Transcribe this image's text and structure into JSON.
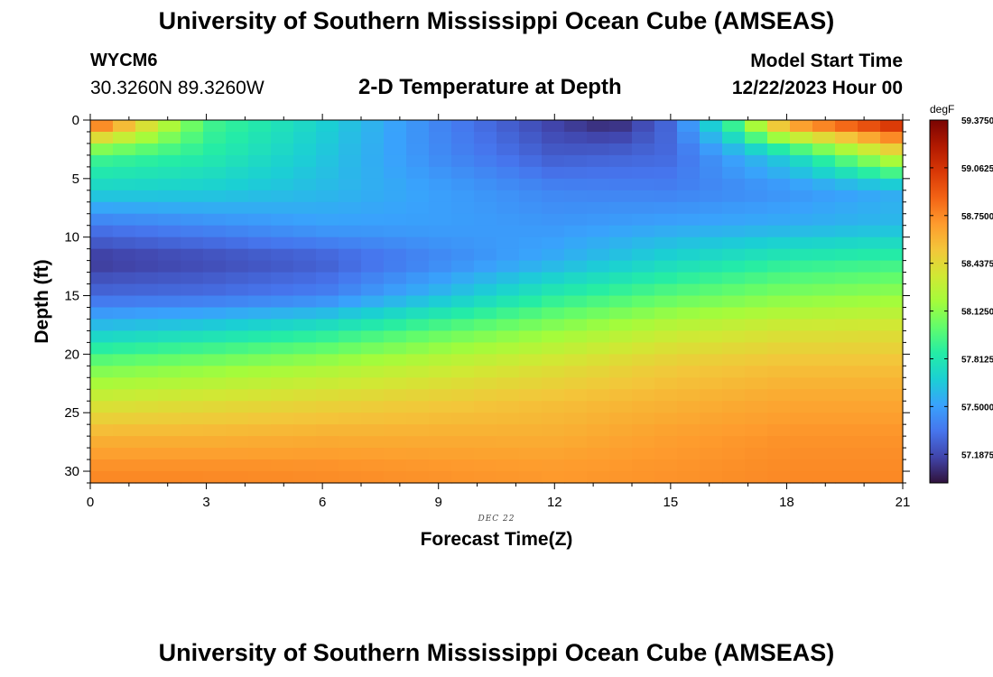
{
  "header": {
    "title": "University of Southern Mississippi Ocean Cube (AMSEAS)",
    "station_id": "WYCM6",
    "coordinates": "30.3260N  89.3260W",
    "subtitle": "2-D Temperature at Depth",
    "model_start_label": "Model Start Time",
    "model_start_value": "12/22/2023 Hour 00"
  },
  "footer": {
    "title": "University of Southern Mississippi Ocean Cube (AMSEAS)"
  },
  "chart_data": {
    "type": "heatmap",
    "title": "2-D Temperature at Depth",
    "xlabel": "Forecast Time(Z)",
    "ylabel": "Depth (ft)",
    "date_label": "DEC 22",
    "xlim": [
      0,
      21
    ],
    "ylim": [
      0,
      31
    ],
    "x_ticks": [
      0,
      3,
      6,
      9,
      12,
      15,
      18,
      21
    ],
    "y_ticks": [
      0,
      5,
      10,
      15,
      20,
      25,
      30
    ],
    "grid_columns": 36,
    "grid_rows": 31,
    "units": "degF",
    "colorbar": {
      "min": 57.0,
      "max": 59.375,
      "tick_labels": [
        "59.3750",
        "59.0625",
        "58.7500",
        "58.4375",
        "58.1250",
        "57.8125",
        "57.5000",
        "57.1875"
      ],
      "tick_values": [
        59.375,
        59.0625,
        58.75,
        58.4375,
        58.125,
        57.8125,
        57.5,
        57.1875
      ],
      "colors": [
        "#30123b",
        "#4145ab",
        "#4675ed",
        "#39a2fc",
        "#1bcfd4",
        "#24eca6",
        "#61fc6c",
        "#a4fc3b",
        "#d1e834",
        "#f3c63a",
        "#fe9b2d",
        "#f36315",
        "#d93806",
        "#b11901",
        "#7a0402"
      ]
    },
    "temperature_field": {
      "description_rows": [
        {
          "depth": 0,
          "values_at_hours": {
            "0": 59.0,
            "3": 57.95,
            "6": 57.7,
            "9": 57.4,
            "12": 57.15,
            "13.5": 57.05,
            "15": 57.3,
            "16.5": 57.9,
            "18": 58.8,
            "21": 59.2
          }
        },
        {
          "depth": 3,
          "values_at_hours": {
            "0": 57.95,
            "3": 57.85,
            "6": 57.65,
            "9": 57.42,
            "12": 57.25,
            "15": 57.3,
            "18": 57.7,
            "21": 58.4
          }
        },
        {
          "depth": 6,
          "values_at_hours": {
            "0": 57.7,
            "3": 57.68,
            "6": 57.6,
            "9": 57.5,
            "12": 57.4,
            "15": 57.38,
            "18": 57.45,
            "21": 57.55
          }
        },
        {
          "depth": 9,
          "values_at_hours": {
            "0": 57.35,
            "3": 57.42,
            "6": 57.5,
            "9": 57.5,
            "12": 57.47,
            "15": 57.52,
            "18": 57.55,
            "21": 57.6
          }
        },
        {
          "depth": 12,
          "values_at_hours": {
            "0": 57.12,
            "3": 57.18,
            "6": 57.25,
            "9": 57.4,
            "12": 57.55,
            "15": 57.72,
            "18": 57.85,
            "21": 57.9
          }
        },
        {
          "depth": 15,
          "values_at_hours": {
            "0": 57.3,
            "3": 57.32,
            "6": 57.38,
            "9": 57.6,
            "12": 57.85,
            "15": 58.0,
            "18": 58.1,
            "21": 58.15
          }
        },
        {
          "depth": 18,
          "values_at_hours": {
            "0": 57.65,
            "3": 57.72,
            "6": 57.82,
            "9": 58.0,
            "12": 58.15,
            "15": 58.3,
            "18": 58.38,
            "21": 58.4
          }
        },
        {
          "depth": 21,
          "values_at_hours": {
            "0": 58.05,
            "3": 58.12,
            "6": 58.2,
            "9": 58.3,
            "12": 58.4,
            "15": 58.5,
            "18": 58.55,
            "21": 58.55
          }
        },
        {
          "depth": 24,
          "values_at_hours": {
            "0": 58.35,
            "3": 58.4,
            "6": 58.45,
            "9": 58.5,
            "12": 58.55,
            "15": 58.6,
            "18": 58.65,
            "21": 58.65
          }
        },
        {
          "depth": 27,
          "values_at_hours": {
            "0": 58.6,
            "3": 58.6,
            "6": 58.62,
            "9": 58.62,
            "12": 58.62,
            "15": 58.68,
            "18": 58.72,
            "21": 58.72
          }
        },
        {
          "depth": 30,
          "values_at_hours": {
            "0": 58.75,
            "3": 58.75,
            "6": 58.74,
            "9": 58.72,
            "12": 58.7,
            "15": 58.72,
            "18": 58.75,
            "21": 58.75
          }
        }
      ]
    }
  }
}
